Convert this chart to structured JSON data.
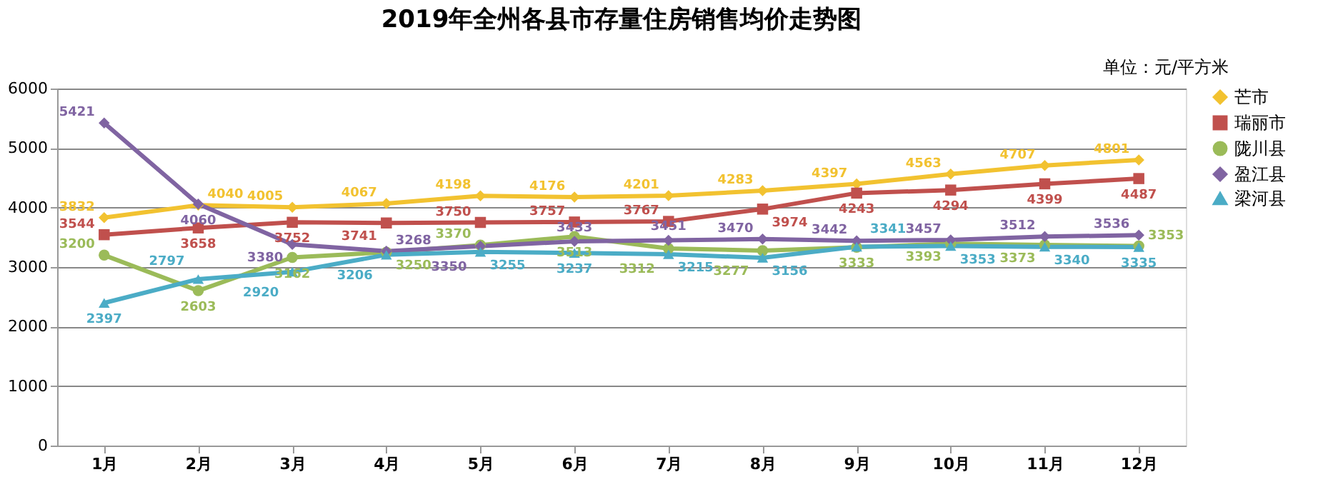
{
  "chart_data": {
    "type": "line",
    "title": "2019年全州各县市存量住房销售均价走势图",
    "annotations": [
      "单位：元/平方米"
    ],
    "categories": [
      "1月",
      "2月",
      "3月",
      "4月",
      "5月",
      "6月",
      "7月",
      "8月",
      "9月",
      "10月",
      "11月",
      "12月"
    ],
    "series": [
      {
        "name": "芒市",
        "color": "#f2c230",
        "marker": "diamond",
        "values": [
          3832,
          4040,
          4005,
          4067,
          4198,
          4176,
          4201,
          4283,
          4397,
          4563,
          4707,
          4801
        ]
      },
      {
        "name": "瑞丽市",
        "color": "#c0504d",
        "marker": "square",
        "values": [
          3544,
          3658,
          3752,
          3741,
          3750,
          3757,
          3767,
          3974,
          4243,
          4294,
          4399,
          4487
        ]
      },
      {
        "name": "陇川县",
        "color": "#9bbb59",
        "marker": "circle",
        "values": [
          3200,
          2603,
          3162,
          3250,
          3370,
          3513,
          3312,
          3277,
          3333,
          3393,
          3373,
          3353
        ]
      },
      {
        "name": "盈江县",
        "color": "#8064a2",
        "marker": "diamond",
        "values": [
          5421,
          4060,
          3380,
          3268,
          3350,
          3433,
          3451,
          3470,
          3442,
          3457,
          3512,
          3536
        ]
      },
      {
        "name": "梁河县",
        "color": "#4bacc6",
        "marker": "triangle",
        "values": [
          2397,
          2797,
          2920,
          3206,
          3255,
          3237,
          3215,
          3156,
          3341,
          3353,
          3340,
          3335
        ]
      }
    ],
    "ylim": [
      0,
      6000
    ],
    "yticks": [
      0,
      1000,
      2000,
      3000,
      4000,
      5000,
      6000
    ],
    "grid": "y",
    "legend": "right",
    "data_labels": true
  }
}
